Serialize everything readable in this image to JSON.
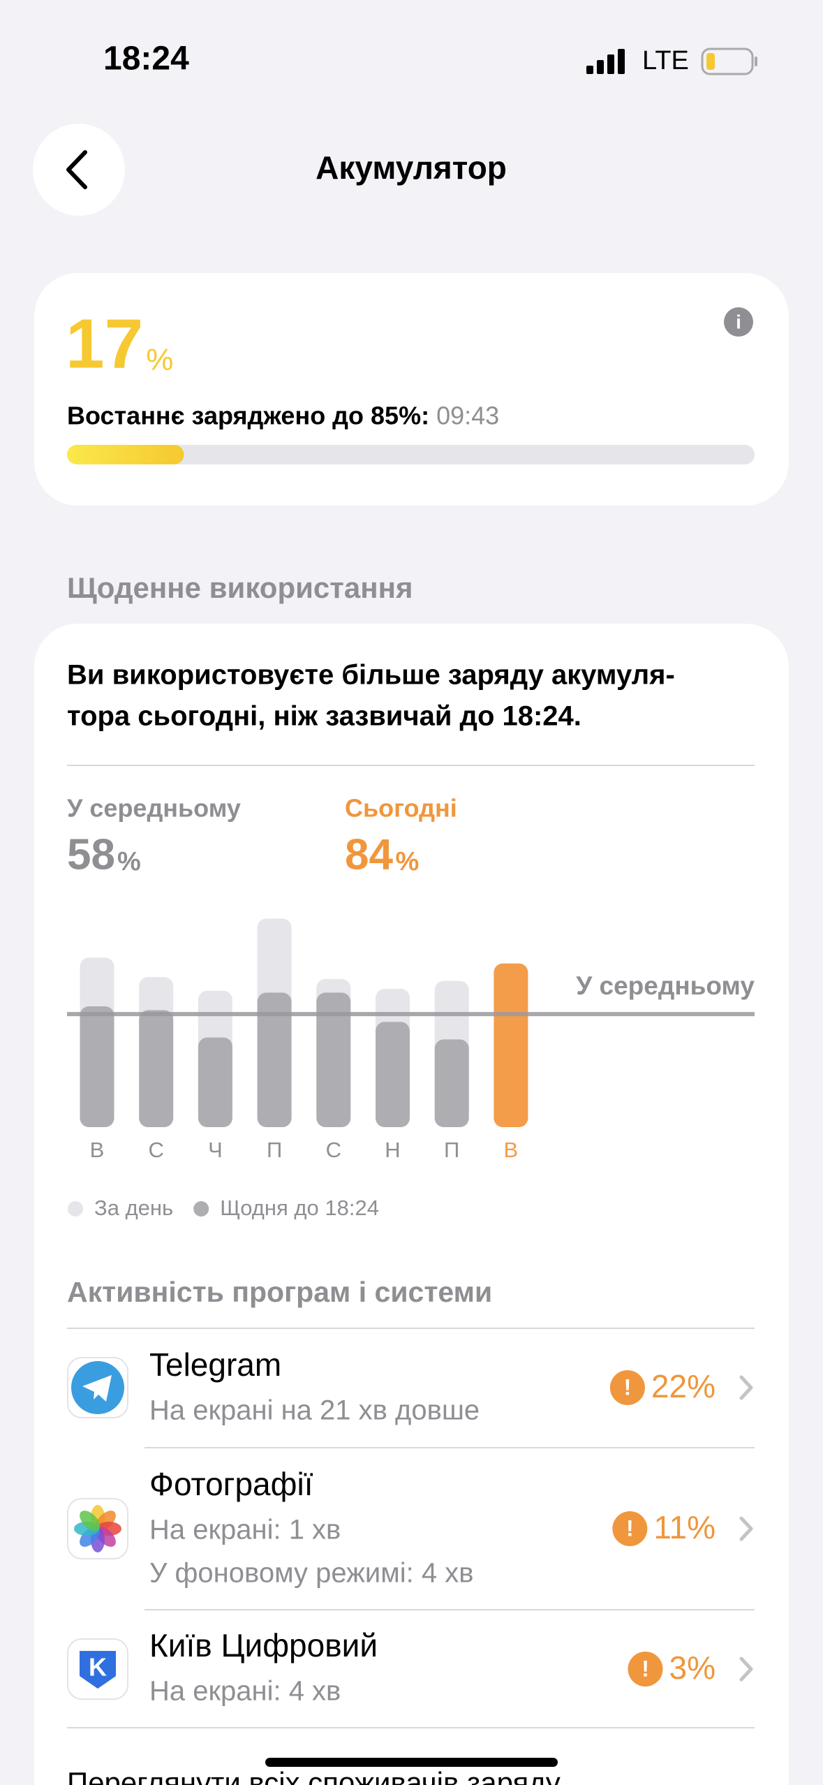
{
  "status": {
    "time": "18:24",
    "network": "LTE"
  },
  "header": {
    "title": "Акумулятор"
  },
  "battery": {
    "level": "17",
    "unit": "%",
    "last_charged": "Востаннє заряджено до 85%:",
    "last_charged_time": "09:43"
  },
  "daily": {
    "title": "Щоденне використання",
    "message": [
      "Ви використовуєте більше заряду акумуля-",
      "тора сьогодні, ніж зазвичай до 18:24."
    ],
    "average_label": "У середньому",
    "average_value": "58",
    "average_unit": "%",
    "today_label": "Сьогодні",
    "today_value": "84",
    "today_unit": "%"
  },
  "chart_data": {
    "type": "bar",
    "categories": [
      "В",
      "С",
      "Ч",
      "П",
      "С",
      "Н",
      "П",
      "В"
    ],
    "series": [
      {
        "name": "За день",
        "color": "#e5e5ea",
        "values": [
          87,
          77,
          70,
          107,
          76,
          71,
          75,
          null
        ]
      },
      {
        "name": "Щодня до 18:24",
        "color": "#aeaeb2",
        "values": [
          62,
          60,
          46,
          69,
          69,
          54,
          45,
          84
        ],
        "colors": [
          "#aeaeb2",
          "#aeaeb2",
          "#aeaeb2",
          "#aeaeb2",
          "#aeaeb2",
          "#aeaeb2",
          "#aeaeb2",
          "#f39c4a"
        ]
      }
    ],
    "average": 58,
    "average_label": "У середньому",
    "ylim": [
      0,
      110
    ]
  },
  "activity": {
    "title": "Активність програм і системи",
    "apps": [
      {
        "name": "Telegram",
        "details": [
          "На екрані на 21 хв довше"
        ],
        "percent": "22%"
      },
      {
        "name": "Фотографії",
        "details": [
          "На екрані: 1 хв",
          "У фоновому режимі: 4 хв"
        ],
        "percent": "11%"
      },
      {
        "name": "Київ Цифровий",
        "details": [
          "На екрані: 4 хв"
        ],
        "percent": "3%"
      }
    ],
    "more": "Переглянути всіх споживачів заряду"
  }
}
